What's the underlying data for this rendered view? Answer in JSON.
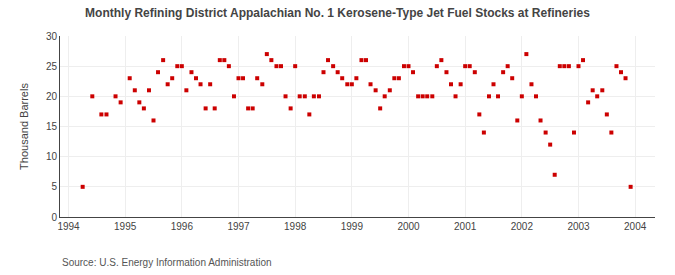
{
  "chart_data": {
    "type": "scatter",
    "title": "Monthly Refining District Appalachian No. 1 Kerosene-Type Jet Fuel Stocks at Refineries",
    "ylabel": "Thousand Barrels",
    "annotations": [
      "Source: U.S. Energy Information Administration"
    ],
    "color": "#cc0000",
    "marker": "square",
    "grid": true,
    "xlim": [
      1993.85,
      2004.35
    ],
    "ylim": [
      0,
      30
    ],
    "xticks": [
      1994,
      1995,
      1996,
      1997,
      1998,
      1999,
      2000,
      2001,
      2002,
      2003,
      2004
    ],
    "yticks": [
      0,
      5,
      10,
      15,
      20,
      25,
      30
    ],
    "x": [
      1994.25,
      1994.42,
      1994.58,
      1994.67,
      1994.83,
      1994.92,
      1995.08,
      1995.17,
      1995.25,
      1995.33,
      1995.42,
      1995.5,
      1995.58,
      1995.67,
      1995.75,
      1995.83,
      1995.92,
      1996.0,
      1996.08,
      1996.17,
      1996.25,
      1996.33,
      1996.42,
      1996.5,
      1996.58,
      1996.67,
      1996.75,
      1996.83,
      1996.92,
      1997.0,
      1997.08,
      1997.17,
      1997.25,
      1997.33,
      1997.42,
      1997.5,
      1997.58,
      1997.67,
      1997.75,
      1997.83,
      1997.92,
      1998.0,
      1998.08,
      1998.17,
      1998.25,
      1998.33,
      1998.42,
      1998.5,
      1998.58,
      1998.67,
      1998.75,
      1998.83,
      1998.92,
      1999.0,
      1999.08,
      1999.17,
      1999.25,
      1999.33,
      1999.42,
      1999.5,
      1999.58,
      1999.67,
      1999.75,
      1999.83,
      1999.92,
      2000.0,
      2000.08,
      2000.17,
      2000.25,
      2000.33,
      2000.42,
      2000.5,
      2000.58,
      2000.67,
      2000.75,
      2000.83,
      2000.92,
      2001.0,
      2001.08,
      2001.17,
      2001.25,
      2001.33,
      2001.42,
      2001.5,
      2001.58,
      2001.67,
      2001.75,
      2001.83,
      2001.92,
      2002.0,
      2002.08,
      2002.17,
      2002.25,
      2002.33,
      2002.42,
      2002.5,
      2002.58,
      2002.67,
      2002.75,
      2002.83,
      2002.92,
      2003.0,
      2003.08,
      2003.17,
      2003.25,
      2003.33,
      2003.42,
      2003.5,
      2003.58,
      2003.67,
      2003.75,
      2003.83,
      2003.92
    ],
    "values": [
      5,
      20,
      17,
      17,
      20,
      19,
      23,
      21,
      19,
      18,
      21,
      16,
      24,
      26,
      22,
      23,
      25,
      25,
      21,
      24,
      23,
      22,
      18,
      22,
      18,
      26,
      26,
      25,
      20,
      23,
      23,
      18,
      18,
      23,
      22,
      27,
      26,
      25,
      25,
      20,
      18,
      25,
      20,
      20,
      17,
      20,
      20,
      24,
      26,
      25,
      24,
      23,
      22,
      22,
      23,
      26,
      26,
      22,
      21,
      18,
      20,
      21,
      23,
      23,
      25,
      25,
      24,
      20,
      20,
      20,
      20,
      25,
      26,
      24,
      22,
      20,
      22,
      25,
      25,
      24,
      17,
      14,
      20,
      22,
      20,
      24,
      25,
      23,
      16,
      20,
      27,
      22,
      20,
      16,
      14,
      12,
      7,
      25,
      25,
      25,
      14,
      25,
      26,
      19,
      21,
      20,
      21,
      17,
      14,
      25,
      24,
      23,
      5
    ]
  }
}
